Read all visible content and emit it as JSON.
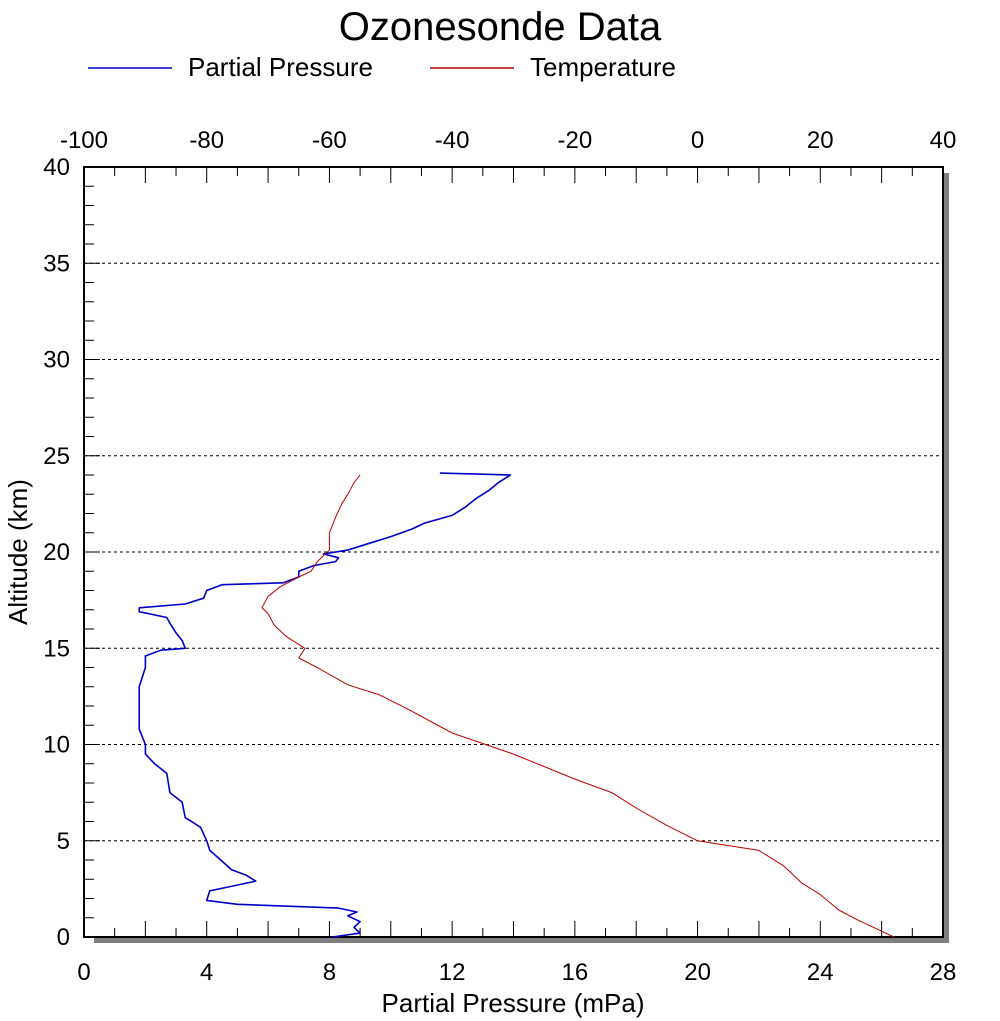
{
  "chart_data": {
    "type": "line",
    "title": "Ozonesonde Data",
    "xlabel": "Partial Pressure (mPa)",
    "ylabel": "Altitude (km)",
    "x_bottom": {
      "label": "Partial Pressure (mPa)",
      "lim": [
        0,
        28
      ],
      "ticks": [
        "0",
        "4",
        "8",
        "12",
        "16",
        "20",
        "24",
        "28"
      ]
    },
    "x_top": {
      "lim": [
        -100,
        40
      ],
      "ticks": [
        "-100",
        "-80",
        "-60",
        "-40",
        "-20",
        "0",
        "20",
        "40"
      ]
    },
    "y": {
      "lim": [
        0,
        40
      ],
      "ticks": [
        "0",
        "5",
        "10",
        "15",
        "20",
        "25",
        "30",
        "35",
        "40"
      ]
    },
    "grid": "horizontal dotted at major y ticks",
    "legend_position": "top",
    "series": [
      {
        "name": "Partial Pressure",
        "axis": "bottom",
        "color": "#0000cc",
        "points": [
          [
            8.1,
            0.0
          ],
          [
            9.0,
            0.2
          ],
          [
            8.8,
            0.5
          ],
          [
            9.0,
            0.8
          ],
          [
            8.6,
            1.1
          ],
          [
            8.9,
            1.3
          ],
          [
            8.3,
            1.5
          ],
          [
            5.0,
            1.7
          ],
          [
            4.0,
            1.9
          ],
          [
            4.1,
            2.4
          ],
          [
            4.7,
            2.6
          ],
          [
            5.6,
            2.9
          ],
          [
            5.3,
            3.2
          ],
          [
            4.8,
            3.5
          ],
          [
            4.6,
            3.8
          ],
          [
            4.1,
            4.5
          ],
          [
            4.0,
            5.0
          ],
          [
            3.8,
            5.7
          ],
          [
            3.3,
            6.2
          ],
          [
            3.2,
            7.0
          ],
          [
            2.8,
            7.5
          ],
          [
            2.7,
            8.5
          ],
          [
            2.3,
            9.0
          ],
          [
            2.0,
            9.5
          ],
          [
            2.0,
            10.0
          ],
          [
            1.8,
            10.8
          ],
          [
            1.8,
            12.0
          ],
          [
            1.8,
            13.0
          ],
          [
            2.0,
            14.0
          ],
          [
            2.0,
            14.6
          ],
          [
            2.5,
            14.9
          ],
          [
            3.3,
            15.0
          ],
          [
            3.2,
            15.4
          ],
          [
            3.0,
            15.8
          ],
          [
            2.8,
            16.3
          ],
          [
            2.7,
            16.6
          ],
          [
            1.8,
            16.9
          ],
          [
            1.8,
            17.1
          ],
          [
            3.3,
            17.3
          ],
          [
            3.9,
            17.6
          ],
          [
            4.0,
            18.0
          ],
          [
            4.5,
            18.3
          ],
          [
            6.5,
            18.4
          ],
          [
            7.0,
            18.7
          ],
          [
            7.0,
            19.0
          ],
          [
            7.5,
            19.3
          ],
          [
            8.2,
            19.5
          ],
          [
            8.3,
            19.7
          ],
          [
            7.8,
            19.9
          ],
          [
            8.6,
            20.1
          ],
          [
            9.0,
            20.3
          ],
          [
            10.0,
            20.8
          ],
          [
            10.7,
            21.2
          ],
          [
            11.1,
            21.5
          ],
          [
            12.0,
            21.9
          ],
          [
            12.4,
            22.3
          ],
          [
            12.8,
            22.8
          ],
          [
            13.2,
            23.2
          ],
          [
            13.5,
            23.6
          ],
          [
            13.9,
            24.0
          ],
          [
            11.6,
            24.1
          ]
        ]
      },
      {
        "name": "Temperature",
        "axis": "top",
        "color": "#bb0000",
        "points": [
          [
            32.0,
            0.0
          ],
          [
            30.0,
            0.3
          ],
          [
            26.0,
            0.9
          ],
          [
            23.0,
            1.4
          ],
          [
            20.0,
            2.2
          ],
          [
            17.0,
            2.8
          ],
          [
            14.0,
            3.7
          ],
          [
            10.0,
            4.5
          ],
          [
            0.0,
            5.0
          ],
          [
            -5.0,
            5.8
          ],
          [
            -10.0,
            6.7
          ],
          [
            -14.0,
            7.5
          ],
          [
            -20.0,
            8.2
          ],
          [
            -30.0,
            9.5
          ],
          [
            -40.0,
            10.6
          ],
          [
            -47.0,
            11.8
          ],
          [
            -52.0,
            12.6
          ],
          [
            -57.0,
            13.1
          ],
          [
            -62.0,
            14.0
          ],
          [
            -65.0,
            14.5
          ],
          [
            -64.0,
            15.0
          ],
          [
            -67.0,
            15.6
          ],
          [
            -69.0,
            16.2
          ],
          [
            -70.0,
            16.8
          ],
          [
            -71.0,
            17.1
          ],
          [
            -70.0,
            17.7
          ],
          [
            -68.0,
            18.2
          ],
          [
            -65.0,
            18.7
          ],
          [
            -63.0,
            19.0
          ],
          [
            -62.0,
            19.5
          ],
          [
            -60.0,
            20.1
          ],
          [
            -60.0,
            21.0
          ],
          [
            -59.0,
            21.8
          ],
          [
            -58.0,
            22.5
          ],
          [
            -57.0,
            23.0
          ],
          [
            -56.0,
            23.6
          ],
          [
            -55.0,
            24.0
          ]
        ]
      }
    ]
  }
}
